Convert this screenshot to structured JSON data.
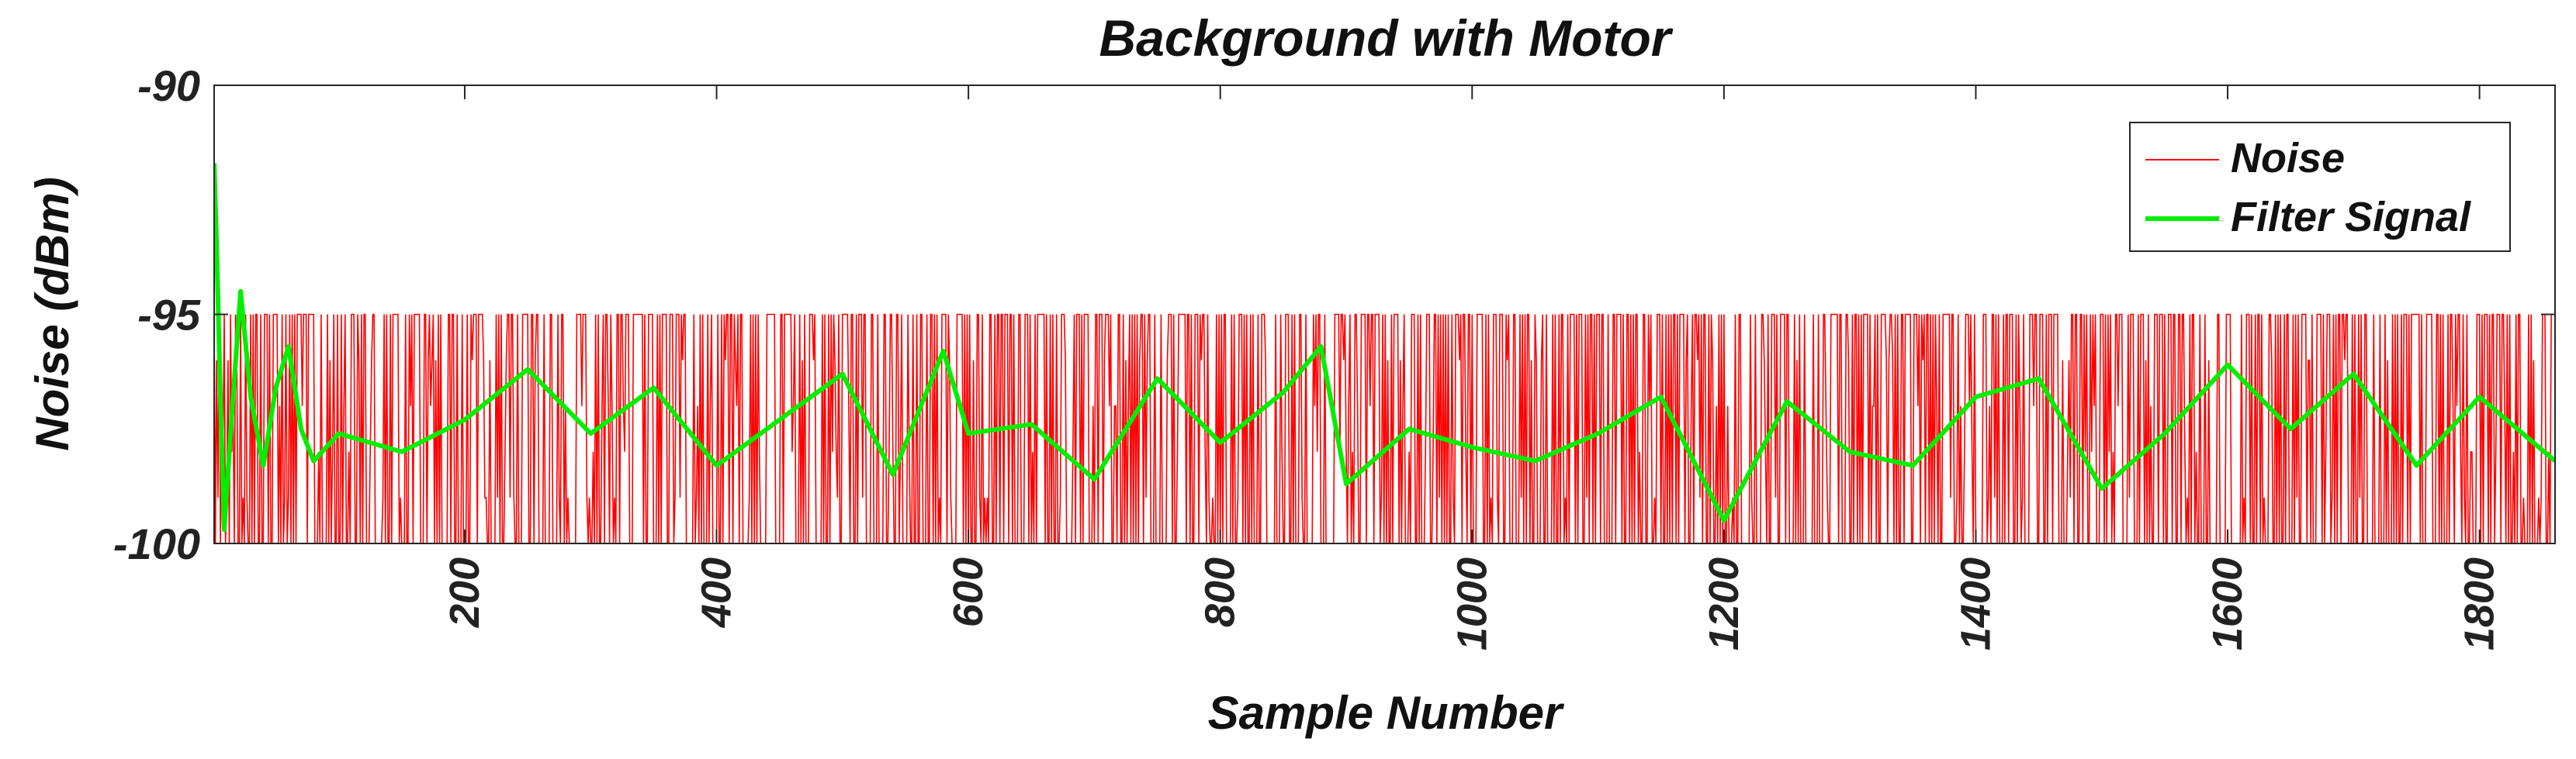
{
  "chart_data": {
    "type": "line",
    "title": "Background with Motor",
    "xlabel": "Sample Number",
    "ylabel": "Noise (dBm)",
    "xlim": [
      1,
      1860
    ],
    "ylim": [
      -100,
      -90
    ],
    "x_ticks": [
      200,
      400,
      600,
      800,
      1000,
      1200,
      1400,
      1600,
      1800
    ],
    "x_tick_labels": [
      "200",
      "400",
      "600",
      "800",
      "1000",
      "1200",
      "1400",
      "1600",
      "1800"
    ],
    "y_ticks": [
      -100,
      -95,
      -90
    ],
    "y_tick_labels": [
      "-100",
      "-95",
      "-90"
    ],
    "grid": false,
    "legend_position": "top-right",
    "colors": {
      "Noise": "#ff0000",
      "Filter Signal": "#00ee00"
    },
    "series": [
      {
        "name": "Noise",
        "style": "thin line, integer dBm readings switching rapidly between -95 and -100 on every sample",
        "x_start": 1,
        "x_step": 1,
        "count": 1860,
        "values_sample": [
          -95,
          -100,
          -96,
          -99,
          -95,
          -100,
          -97,
          -98,
          -95,
          -100,
          -99,
          -96,
          -100,
          -95,
          -98,
          -97,
          -100,
          -95,
          -96,
          -100
        ]
      },
      {
        "name": "Filter Signal",
        "style": "thick line, smoothed version of the noise",
        "x": [
          1,
          3,
          6,
          9,
          15,
          22,
          30,
          40,
          50,
          60,
          70,
          80,
          100,
          150,
          200,
          250,
          300,
          350,
          400,
          450,
          500,
          540,
          580,
          600,
          650,
          700,
          750,
          800,
          850,
          880,
          900,
          950,
          1000,
          1050,
          1100,
          1150,
          1200,
          1250,
          1300,
          1350,
          1400,
          1450,
          1500,
          1550,
          1600,
          1650,
          1700,
          1750,
          1800,
          1860
        ],
        "values": [
          -91.7,
          -93.5,
          -96.8,
          -99.7,
          -97.2,
          -94.5,
          -96.8,
          -98.3,
          -96.6,
          -95.7,
          -97.5,
          -98.2,
          -97.6,
          -98.0,
          -97.3,
          -96.2,
          -97.6,
          -96.6,
          -98.3,
          -97.3,
          -96.3,
          -98.5,
          -95.8,
          -97.6,
          -97.4,
          -98.6,
          -96.4,
          -97.8,
          -96.7,
          -95.7,
          -98.7,
          -97.5,
          -97.9,
          -98.2,
          -97.6,
          -96.8,
          -99.5,
          -96.9,
          -98.0,
          -98.3,
          -96.8,
          -96.4,
          -98.8,
          -97.6,
          -96.1,
          -97.5,
          -96.3,
          -98.3,
          -96.8,
          -98.2
        ]
      }
    ]
  }
}
